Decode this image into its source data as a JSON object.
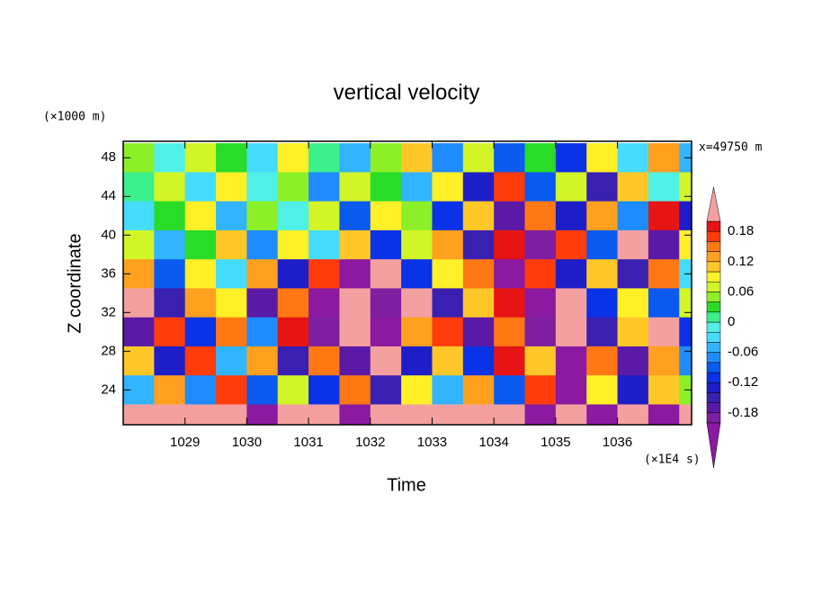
{
  "chart_data": {
    "type": "heatmap",
    "title": "vertical velocity",
    "y_unit_label": "(×1000 m)",
    "x_unit_label": "(×1E4 s)",
    "ylabel": "Z coordinate",
    "xlabel": "Time",
    "annotation": "x=49750 m",
    "xlim": [
      1028.0,
      1037.2
    ],
    "ylim": [
      20.4,
      49.7
    ],
    "xticks": [
      1029,
      1030,
      1031,
      1032,
      1033,
      1034,
      1035,
      1036
    ],
    "yticks": [
      24,
      28,
      32,
      36,
      40,
      44,
      48
    ],
    "x": [
      1028.25,
      1028.75,
      1029.25,
      1029.75,
      1030.25,
      1030.75,
      1031.25,
      1031.75,
      1032.25,
      1032.75,
      1033.25,
      1033.75,
      1034.25,
      1034.75,
      1035.25,
      1035.75,
      1036.25,
      1036.75,
      1037.25
    ],
    "y": [
      48,
      45,
      42,
      39,
      36,
      33,
      30,
      27,
      24,
      21
    ],
    "z": [
      [
        0.04,
        -0.02,
        0.06,
        0.02,
        -0.04,
        0.08,
        0.0,
        -0.06,
        0.04,
        0.1,
        -0.08,
        0.06,
        -0.1,
        0.02,
        -0.12,
        0.08,
        -0.04,
        0.12,
        -0.06
      ],
      [
        0.0,
        0.06,
        -0.04,
        0.08,
        -0.02,
        0.04,
        -0.08,
        0.06,
        0.02,
        -0.06,
        0.08,
        -0.14,
        0.16,
        -0.1,
        0.06,
        -0.16,
        0.1,
        -0.02,
        0.06
      ],
      [
        -0.04,
        0.02,
        0.08,
        -0.06,
        0.04,
        -0.02,
        0.06,
        -0.1,
        0.08,
        0.04,
        -0.12,
        0.1,
        -0.18,
        0.14,
        -0.14,
        0.12,
        -0.08,
        0.18,
        -0.14
      ],
      [
        0.06,
        -0.06,
        0.02,
        0.1,
        -0.08,
        0.08,
        -0.04,
        0.1,
        -0.12,
        0.06,
        0.12,
        -0.16,
        0.18,
        -0.2,
        0.16,
        -0.1,
        0.22,
        -0.18,
        0.08
      ],
      [
        0.12,
        -0.1,
        0.08,
        -0.04,
        0.12,
        -0.14,
        0.16,
        -0.22,
        0.24,
        -0.12,
        0.08,
        0.14,
        -0.22,
        0.16,
        -0.14,
        0.1,
        -0.16,
        0.14,
        -0.04
      ],
      [
        0.22,
        -0.16,
        0.12,
        0.08,
        -0.18,
        0.14,
        -0.24,
        0.26,
        -0.2,
        0.24,
        -0.16,
        0.1,
        0.18,
        -0.24,
        0.2,
        -0.12,
        0.08,
        -0.1,
        0.06
      ],
      [
        -0.18,
        0.16,
        -0.12,
        0.14,
        -0.08,
        0.18,
        -0.2,
        0.22,
        -0.26,
        0.12,
        0.16,
        -0.18,
        0.14,
        -0.2,
        0.22,
        -0.16,
        0.1,
        0.2,
        -0.12
      ],
      [
        0.1,
        -0.14,
        0.16,
        -0.06,
        0.12,
        -0.16,
        0.14,
        -0.18,
        0.2,
        -0.14,
        0.1,
        -0.12,
        0.18,
        0.1,
        -0.24,
        0.14,
        -0.18,
        0.12,
        -0.08
      ],
      [
        -0.06,
        0.12,
        -0.08,
        0.16,
        -0.1,
        0.06,
        -0.12,
        0.14,
        -0.16,
        0.08,
        -0.06,
        0.12,
        -0.1,
        0.16,
        -0.22,
        0.08,
        -0.14,
        0.1,
        0.04
      ],
      [
        0.24,
        0.26,
        0.22,
        0.24,
        -0.22,
        0.24,
        0.26,
        -0.24,
        0.22,
        0.24,
        0.26,
        0.22,
        0.24,
        -0.26,
        0.22,
        -0.24,
        0.24,
        -0.26,
        0.22
      ]
    ],
    "colorbar": {
      "levels": [
        -0.2,
        -0.18,
        -0.16,
        -0.14,
        -0.12,
        -0.1,
        -0.08,
        -0.06,
        -0.04,
        -0.02,
        0,
        0.02,
        0.04,
        0.06,
        0.08,
        0.1,
        0.12,
        0.14,
        0.16,
        0.18,
        0.2
      ],
      "colors": [
        "#7d1fa0",
        "#5a1aa6",
        "#3a20b0",
        "#1e1ec8",
        "#0a32e6",
        "#0a5af0",
        "#1e8cff",
        "#32b4ff",
        "#46dcff",
        "#50f0e6",
        "#3cf08c",
        "#28dc28",
        "#8cf028",
        "#d2f528",
        "#fff028",
        "#ffc828",
        "#ffa01e",
        "#ff7814",
        "#ff3c0a",
        "#e61414"
      ],
      "under_color": "#8b1aa0",
      "over_color": "#f5a0a0",
      "ticks": [
        -0.18,
        -0.12,
        -0.06,
        0,
        0.06,
        0.12,
        0.18
      ]
    }
  }
}
